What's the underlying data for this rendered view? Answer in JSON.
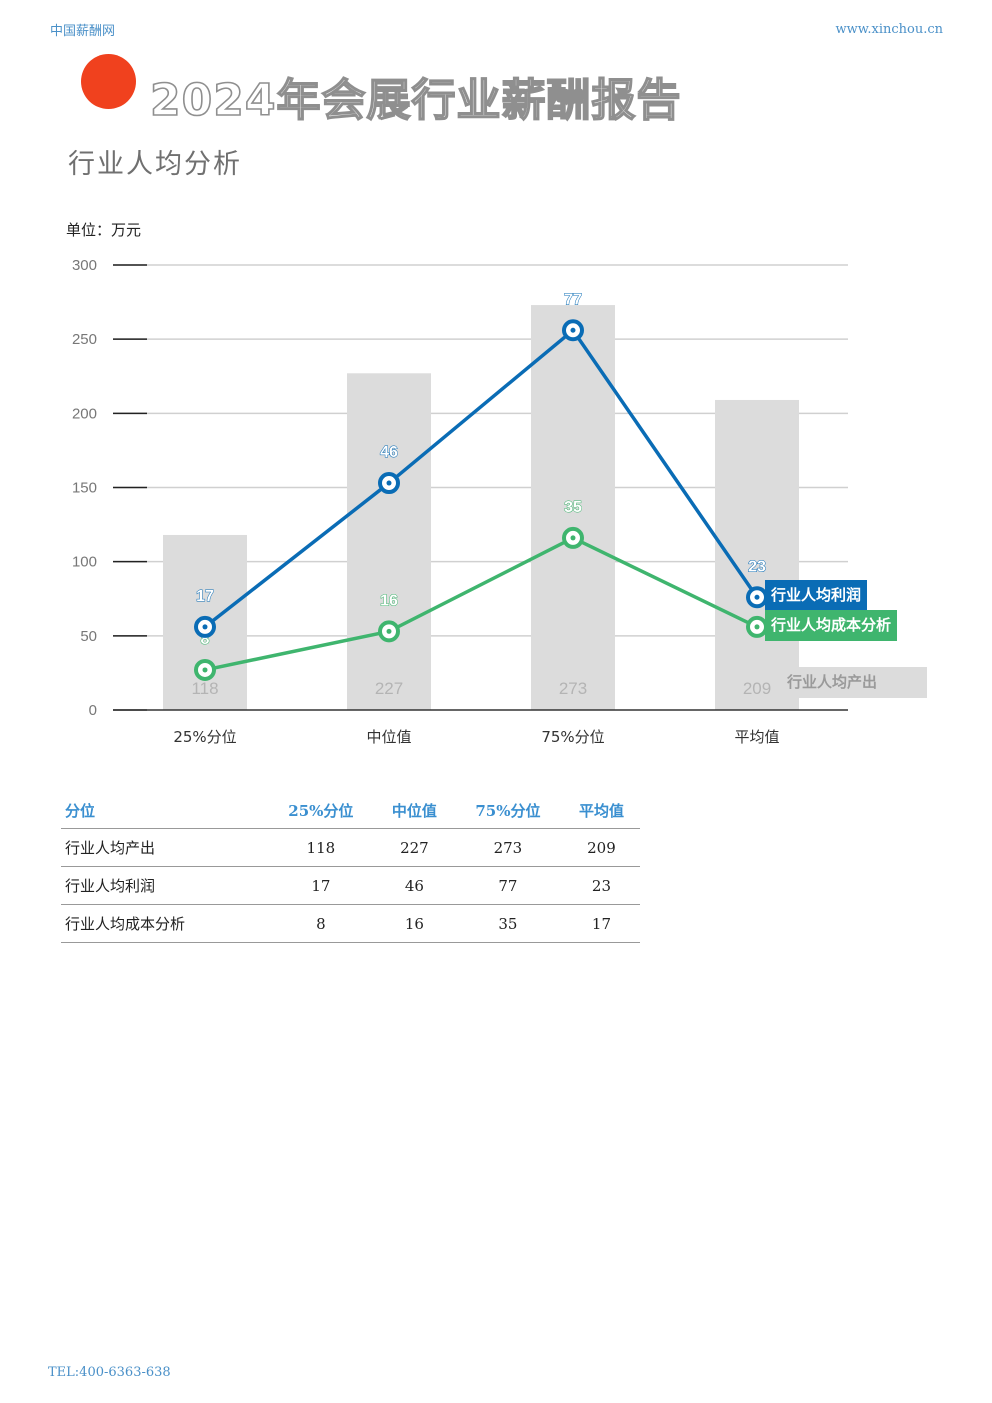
{
  "header": {
    "site_name": "中国薪酬网",
    "url": "www.xinchou.cn"
  },
  "title": "2024年会展行业薪酬报告",
  "subtitle": "行业人均分析",
  "unit_label": "单位：万元",
  "colors": {
    "bar": "#dcdcdc",
    "profit": "#0a6cb5",
    "cost": "#3fb56e",
    "accent_dot": "#f0411e"
  },
  "chart_data": {
    "type": "bar",
    "categories": [
      "25%分位",
      "中位值",
      "75%分位",
      "平均值"
    ],
    "ylim": [
      0,
      300
    ],
    "yticks": [
      0,
      50,
      100,
      150,
      200,
      250,
      300
    ],
    "grid": true,
    "legend_position": "right",
    "series": [
      {
        "name": "行业人均产出",
        "type": "bar",
        "values": [
          118,
          227,
          273,
          209
        ]
      },
      {
        "name": "行业人均利润",
        "type": "line",
        "values": [
          17,
          46,
          77,
          23
        ],
        "plotted": [
          56,
          153,
          256,
          76
        ]
      },
      {
        "name": "行业人均成本分析",
        "type": "line",
        "values": [
          8,
          16,
          35,
          17
        ],
        "plotted": [
          27,
          53,
          116,
          56
        ]
      }
    ]
  },
  "table": {
    "headers": [
      "分位",
      "25%分位",
      "中位值",
      "75%分位",
      "平均值"
    ],
    "rows": [
      [
        "行业人均产出",
        "118",
        "227",
        "273",
        "209"
      ],
      [
        "行业人均利润",
        "17",
        "46",
        "77",
        "23"
      ],
      [
        "行业人均成本分析",
        "8",
        "16",
        "35",
        "17"
      ]
    ]
  },
  "footer": {
    "tel": "TEL:400-6363-638"
  }
}
